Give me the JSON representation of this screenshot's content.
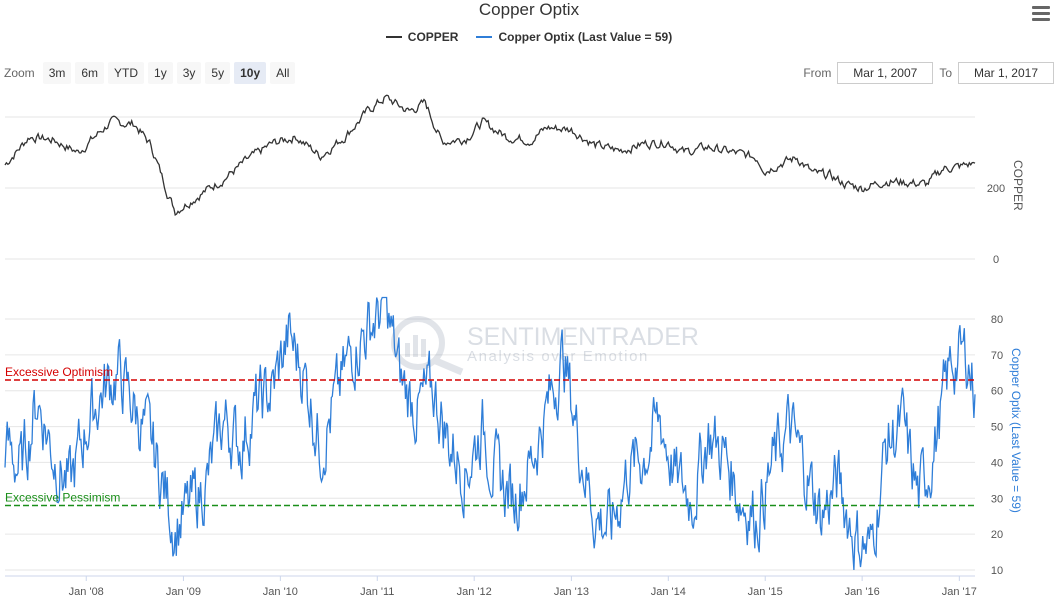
{
  "title": "Copper Optix",
  "legend": [
    {
      "name": "COPPER",
      "color": "#333333"
    },
    {
      "name": "Copper Optix (Last Value = 59)",
      "color": "#2f7ed8"
    }
  ],
  "zoom": {
    "label": "Zoom",
    "buttons": [
      "3m",
      "6m",
      "YTD",
      "1y",
      "3y",
      "5y",
      "10y",
      "All"
    ],
    "active": "10y"
  },
  "range": {
    "from_label": "From",
    "from_value": "Mar 1, 2007",
    "to_label": "To",
    "to_value": "Mar 1, 2017"
  },
  "watermark": {
    "brand": "SENTIMENTRADER",
    "tagline": "Analysis over Emotion"
  },
  "chart_data": [
    {
      "type": "line",
      "series": [
        {
          "name": "COPPER",
          "color": "#333333"
        }
      ],
      "ylabel": "COPPER",
      "yticks": [
        0,
        200
      ],
      "x_start": "2007-03-01",
      "x_end": "2017-03-01",
      "points": [
        [
          "2007-03",
          265
        ],
        [
          "2007-06",
          345
        ],
        [
          "2007-09",
          335
        ],
        [
          "2007-12",
          300
        ],
        [
          "2008-04",
          385
        ],
        [
          "2008-07",
          380
        ],
        [
          "2008-09",
          320
        ],
        [
          "2008-11",
          190
        ],
        [
          "2008-12",
          135
        ],
        [
          "2009-03",
          180
        ],
        [
          "2009-06",
          225
        ],
        [
          "2009-09",
          280
        ],
        [
          "2009-12",
          325
        ],
        [
          "2010-03",
          345
        ],
        [
          "2010-06",
          290
        ],
        [
          "2010-09",
          345
        ],
        [
          "2010-12",
          420
        ],
        [
          "2011-02",
          455
        ],
        [
          "2011-05",
          415
        ],
        [
          "2011-07",
          440
        ],
        [
          "2011-09",
          330
        ],
        [
          "2011-12",
          340
        ],
        [
          "2012-02",
          385
        ],
        [
          "2012-05",
          345
        ],
        [
          "2012-08",
          335
        ],
        [
          "2012-10",
          370
        ],
        [
          "2013-01",
          365
        ],
        [
          "2013-04",
          320
        ],
        [
          "2013-07",
          305
        ],
        [
          "2013-10",
          325
        ],
        [
          "2014-01",
          330
        ],
        [
          "2014-03",
          300
        ],
        [
          "2014-06",
          315
        ],
        [
          "2014-09",
          300
        ],
        [
          "2014-12",
          285
        ],
        [
          "2015-01",
          250
        ],
        [
          "2015-03",
          270
        ],
        [
          "2015-05",
          285
        ],
        [
          "2015-07",
          240
        ],
        [
          "2015-09",
          235
        ],
        [
          "2015-11",
          210
        ],
        [
          "2016-01",
          200
        ],
        [
          "2016-04",
          220
        ],
        [
          "2016-07",
          215
        ],
        [
          "2016-09",
          210
        ],
        [
          "2016-11",
          255
        ],
        [
          "2017-01",
          260
        ],
        [
          "2017-03",
          270
        ]
      ]
    },
    {
      "type": "line",
      "series": [
        {
          "name": "Copper Optix (Last Value = 59)",
          "color": "#2f7ed8",
          "last_value": 59
        }
      ],
      "ylabel": "Copper Optix (Last Value = 59)",
      "yticks": [
        10,
        20,
        30,
        40,
        50,
        60,
        70,
        80
      ],
      "ylim": [
        10,
        86
      ],
      "x_start": "2007-03-01",
      "x_end": "2017-03-01",
      "xticks": [
        "Jan '08",
        "Jan '09",
        "Jan '10",
        "Jan '11",
        "Jan '12",
        "Jan '13",
        "Jan '14",
        "Jan '15",
        "Jan '16",
        "Jan '17"
      ],
      "xtick_dates": [
        "2008-01-01",
        "2009-01-01",
        "2010-01-01",
        "2011-01-01",
        "2012-01-01",
        "2013-01-01",
        "2014-01-01",
        "2015-01-01",
        "2016-01-01",
        "2017-01-01"
      ],
      "plot_bands": [
        {
          "label": "Excessive Optimism",
          "value": 63,
          "color": "#d40000"
        },
        {
          "label": "Excessive Pessimism",
          "value": 28,
          "color": "#1a8f1a"
        }
      ],
      "points": [
        [
          "2007-03",
          45
        ],
        [
          "2007-05",
          38
        ],
        [
          "2007-07",
          58
        ],
        [
          "2007-09",
          42
        ],
        [
          "2007-11",
          33
        ],
        [
          "2008-01",
          50
        ],
        [
          "2008-03",
          60
        ],
        [
          "2008-05",
          65
        ],
        [
          "2008-07",
          55
        ],
        [
          "2008-09",
          45
        ],
        [
          "2008-11",
          30
        ],
        [
          "2008-12",
          22
        ],
        [
          "2009-02",
          28
        ],
        [
          "2009-04",
          35
        ],
        [
          "2009-06",
          52
        ],
        [
          "2009-08",
          45
        ],
        [
          "2009-10",
          55
        ],
        [
          "2009-12",
          60
        ],
        [
          "2010-02",
          75
        ],
        [
          "2010-04",
          65
        ],
        [
          "2010-06",
          45
        ],
        [
          "2010-08",
          58
        ],
        [
          "2010-10",
          72
        ],
        [
          "2010-12",
          78
        ],
        [
          "2011-02",
          84
        ],
        [
          "2011-04",
          62
        ],
        [
          "2011-06",
          55
        ],
        [
          "2011-08",
          60
        ],
        [
          "2011-10",
          45
        ],
        [
          "2011-12",
          38
        ],
        [
          "2012-02",
          50
        ],
        [
          "2012-04",
          35
        ],
        [
          "2012-06",
          30
        ],
        [
          "2012-08",
          40
        ],
        [
          "2012-10",
          55
        ],
        [
          "2012-12",
          70
        ],
        [
          "2013-02",
          45
        ],
        [
          "2013-04",
          25
        ],
        [
          "2013-06",
          22
        ],
        [
          "2013-08",
          38
        ],
        [
          "2013-10",
          42
        ],
        [
          "2013-12",
          52
        ],
        [
          "2014-02",
          35
        ],
        [
          "2014-04",
          30
        ],
        [
          "2014-06",
          48
        ],
        [
          "2014-08",
          42
        ],
        [
          "2014-10",
          30
        ],
        [
          "2014-12",
          25
        ],
        [
          "2015-02",
          40
        ],
        [
          "2015-04",
          50
        ],
        [
          "2015-06",
          38
        ],
        [
          "2015-08",
          25
        ],
        [
          "2015-10",
          35
        ],
        [
          "2015-12",
          20
        ],
        [
          "2016-02",
          15
        ],
        [
          "2016-04",
          45
        ],
        [
          "2016-06",
          50
        ],
        [
          "2016-08",
          30
        ],
        [
          "2016-10",
          45
        ],
        [
          "2016-12",
          68
        ],
        [
          "2017-02",
          70
        ],
        [
          "2017-03",
          59
        ]
      ]
    }
  ]
}
